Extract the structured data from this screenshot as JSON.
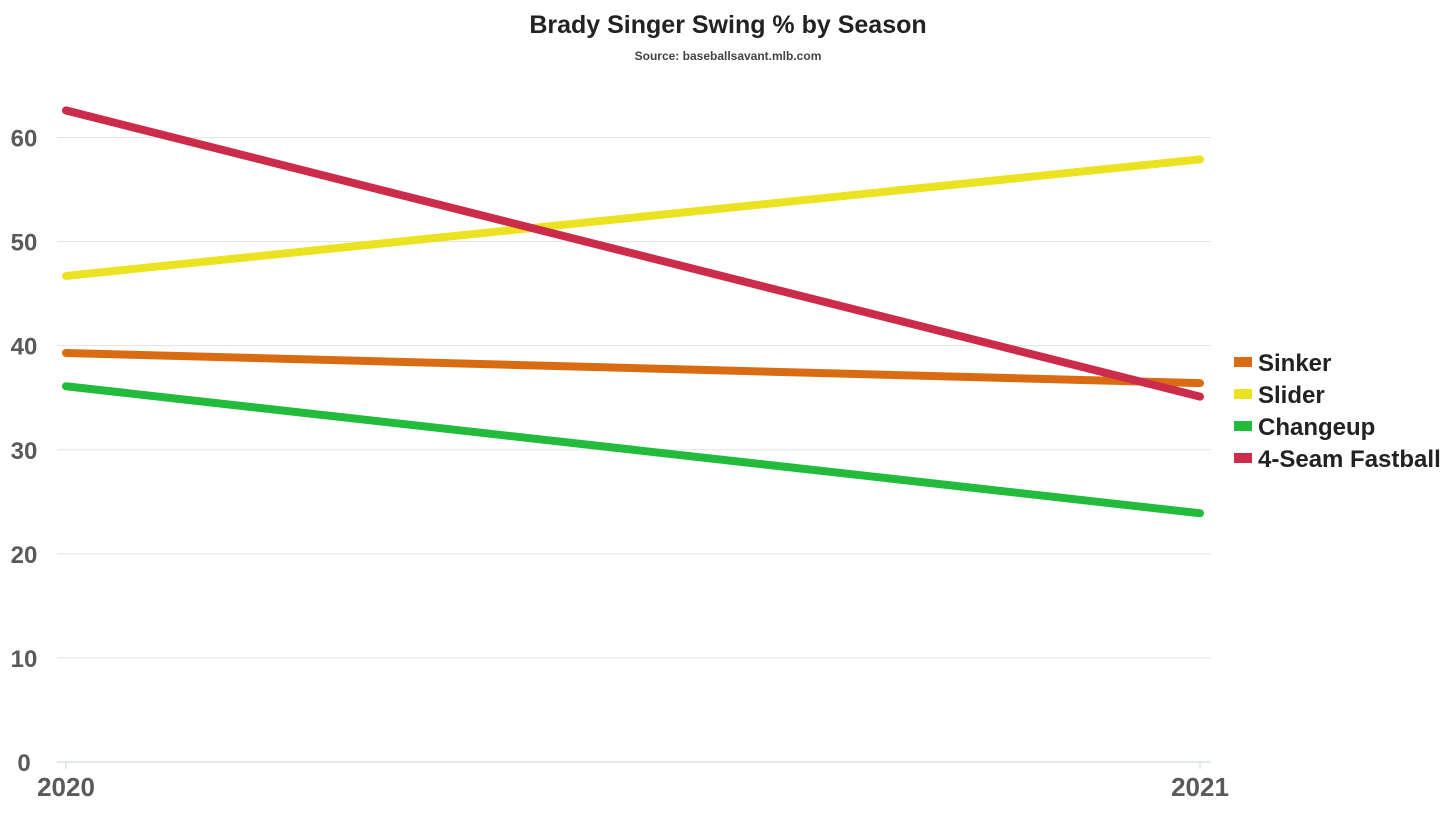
{
  "chart_data": {
    "type": "line",
    "title": "Brady Singer Swing % by Season",
    "subtitle": "Source: baseballsavant.mlb.com",
    "x": [
      "2020",
      "2021"
    ],
    "ylim": [
      0,
      65
    ],
    "yticks": [
      "0",
      "10",
      "20",
      "30",
      "40",
      "50",
      "60"
    ],
    "grid": true,
    "legend_placement": "right",
    "series": [
      {
        "name": "Sinker",
        "color": "#d96c12",
        "values": [
          39.3,
          36.4
        ]
      },
      {
        "name": "Slider",
        "color": "#ebe222",
        "values": [
          46.7,
          57.9
        ]
      },
      {
        "name": "Changeup",
        "color": "#22bb3c",
        "values": [
          36.1,
          23.9
        ]
      },
      {
        "name": "4-Seam Fastball",
        "color": "#cc2b4a",
        "values": [
          62.6,
          35.1
        ]
      }
    ]
  }
}
